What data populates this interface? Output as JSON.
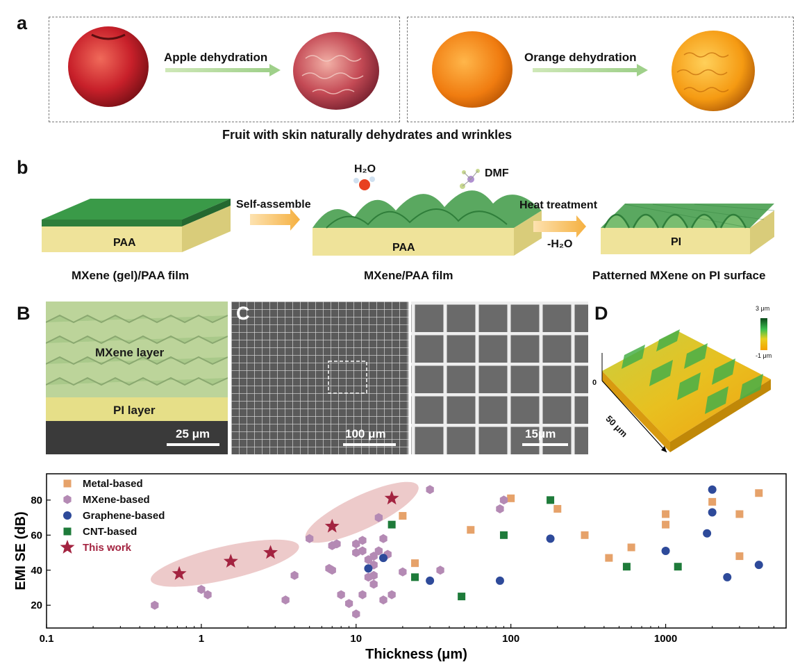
{
  "panel_a": {
    "label": "a",
    "apple_arrow": "Apple dehydration",
    "orange_arrow": "Orange dehydration",
    "caption": "Fruit with skin naturally dehydrates and wrinkles"
  },
  "panel_b": {
    "label": "b",
    "step1_film_label": "PAA",
    "step1_caption": "MXene (gel)/PAA film",
    "arrow1": "Self-assemble",
    "water": "H₂O",
    "dmf": "DMF",
    "step2_film_label": "PAA",
    "step2_caption": "MXene/PAA film",
    "arrow2_top": "Heat treatment",
    "arrow2_bottom": "-H₂O",
    "step3_film_label": "PI",
    "step3_caption": "Patterned MXene on PI surface"
  },
  "panel_B": {
    "label": "B",
    "mxene_layer": "MXene layer",
    "pi_layer": "PI layer",
    "scale": "25 μm"
  },
  "panel_C": {
    "label": "C",
    "scale_left": "100 μm",
    "scale_right": "15μm"
  },
  "panel_D": {
    "label": "D",
    "colorbar_top": "3 μm",
    "colorbar_bottom": "-1 μm",
    "z_zero": "0",
    "axis": "50 μm"
  },
  "chart_data": {
    "type": "scatter",
    "title": "",
    "xlabel": "Thickness (μm)",
    "ylabel": "EMI SE (dB)",
    "xscale": "log",
    "xlim": [
      0.1,
      6000
    ],
    "ylim": [
      7,
      95
    ],
    "xticks": [
      0.1,
      1,
      10,
      100,
      1000
    ],
    "xtick_labels": [
      "0.1",
      "1",
      "10",
      "100",
      "1000"
    ],
    "yticks": [
      20,
      40,
      60,
      80
    ],
    "ytick_labels": [
      "20",
      "40",
      "60",
      "80"
    ],
    "legend_position": "top-left",
    "series": [
      {
        "name": "Metal-based",
        "marker": "square",
        "color": "#E6A26A",
        "points": [
          [
            20,
            71
          ],
          [
            24,
            44
          ],
          [
            55,
            63
          ],
          [
            100,
            81
          ],
          [
            200,
            75
          ],
          [
            300,
            60
          ],
          [
            430,
            47
          ],
          [
            600,
            53
          ],
          [
            1000,
            72
          ],
          [
            1000,
            66
          ],
          [
            2000,
            79
          ],
          [
            3000,
            72
          ],
          [
            3000,
            48
          ],
          [
            4000,
            84
          ]
        ]
      },
      {
        "name": "MXene-based",
        "marker": "hexagon",
        "color": "#B48AB4",
        "points": [
          [
            0.5,
            20
          ],
          [
            1,
            29
          ],
          [
            1.1,
            26
          ],
          [
            3.5,
            23
          ],
          [
            4,
            37
          ],
          [
            5,
            58
          ],
          [
            6.7,
            41
          ],
          [
            7,
            40
          ],
          [
            7,
            54
          ],
          [
            7.5,
            55
          ],
          [
            8,
            26
          ],
          [
            9,
            21
          ],
          [
            10,
            15
          ],
          [
            10,
            55
          ],
          [
            10,
            50
          ],
          [
            11,
            57
          ],
          [
            11,
            51
          ],
          [
            11,
            26
          ],
          [
            12,
            46
          ],
          [
            12,
            36
          ],
          [
            13,
            48
          ],
          [
            13,
            43
          ],
          [
            13,
            37
          ],
          [
            13,
            32
          ],
          [
            14,
            70
          ],
          [
            14,
            51
          ],
          [
            15,
            58
          ],
          [
            15,
            23
          ],
          [
            16,
            49
          ],
          [
            17,
            26
          ],
          [
            20,
            39
          ],
          [
            30,
            86
          ],
          [
            35,
            40
          ],
          [
            85,
            75
          ],
          [
            90,
            80
          ]
        ]
      },
      {
        "name": "Graphene-based",
        "marker": "circle",
        "color": "#2E4A9A",
        "points": [
          [
            12,
            41
          ],
          [
            15,
            47
          ],
          [
            30,
            34
          ],
          [
            85,
            34
          ],
          [
            180,
            58
          ],
          [
            1000,
            51
          ],
          [
            1850,
            61
          ],
          [
            2000,
            86
          ],
          [
            2000,
            73
          ],
          [
            2500,
            36
          ],
          [
            4000,
            43
          ]
        ]
      },
      {
        "name": "CNT-based",
        "marker": "square",
        "color": "#1E7B3A",
        "points": [
          [
            17,
            66
          ],
          [
            24,
            36
          ],
          [
            48,
            25
          ],
          [
            90,
            60
          ],
          [
            180,
            80
          ],
          [
            560,
            42
          ],
          [
            1200,
            42
          ]
        ]
      },
      {
        "name": "This work",
        "marker": "star",
        "color": "#A32340",
        "points": [
          [
            0.72,
            38
          ],
          [
            1.55,
            45
          ],
          [
            2.8,
            50
          ],
          [
            7,
            65
          ],
          [
            17,
            81
          ]
        ]
      }
    ]
  }
}
